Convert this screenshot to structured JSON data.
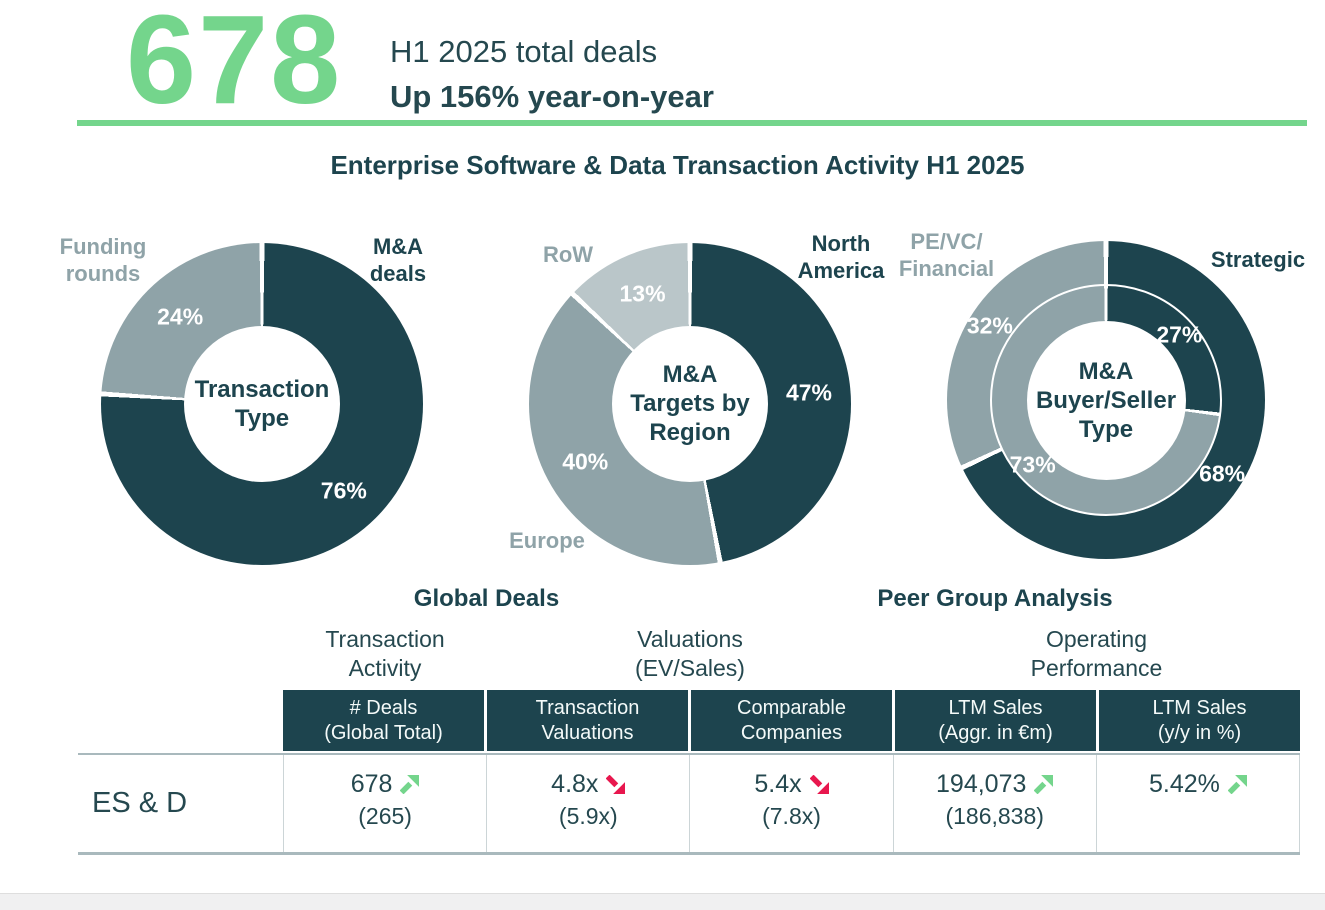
{
  "header": {
    "big_number": "678",
    "line1": "H1 2025 total deals",
    "line2": "Up 156% year-on-year"
  },
  "title": "Enterprise Software & Data Transaction Activity H1 2025",
  "colors": {
    "accent_green": "#74d58c",
    "negative_red": "#e8174e",
    "dark_teal": "#1d444e",
    "medium_gray": "#8fa3a8",
    "light_gray": "#bac6c9"
  },
  "chart_data": [
    {
      "type": "pie",
      "subtype": "donut",
      "title": "Transaction Type",
      "center_label": "Transaction\nType",
      "rings": [
        {
          "name": "transaction-type",
          "slices": [
            {
              "name": "M&A deals",
              "pct": 76,
              "color": "#1d444e",
              "label_color": "#ffffff"
            },
            {
              "name": "Funding rounds",
              "pct": 24,
              "color": "#8fa3a8",
              "label_color": "#ffffff"
            }
          ]
        }
      ],
      "ext_labels": [
        {
          "text": "Funding\nrounds",
          "tone": "gray"
        },
        {
          "text": "M&A\ndeals",
          "tone": "dark"
        }
      ]
    },
    {
      "type": "pie",
      "subtype": "donut",
      "title": "M&A Targets by Region",
      "center_label": "M&A\nTargets by\nRegion",
      "rings": [
        {
          "name": "targets-by-region",
          "slices": [
            {
              "name": "North America",
              "pct": 47,
              "color": "#1d444e",
              "label_color": "#ffffff"
            },
            {
              "name": "Europe",
              "pct": 40,
              "color": "#8fa3a8",
              "label_color": "#ffffff"
            },
            {
              "name": "RoW",
              "pct": 13,
              "color": "#bac6c9",
              "label_color": "#ffffff"
            }
          ]
        }
      ],
      "ext_labels": [
        {
          "text": "RoW",
          "tone": "gray"
        },
        {
          "text": "North\nAmerica",
          "tone": "dark"
        },
        {
          "text": "Europe",
          "tone": "gray"
        }
      ]
    },
    {
      "type": "pie",
      "subtype": "double-donut",
      "title": "M&A Buyer/Seller Type",
      "center_label": "M&A\nBuyer/Seller\nType",
      "rings": [
        {
          "name": "outer-ring",
          "slices": [
            {
              "name": "Strategic",
              "pct": 68,
              "color": "#1d444e",
              "label_color": "#ffffff"
            },
            {
              "name": "PE/VC/Financial",
              "pct": 32,
              "color": "#8fa3a8",
              "label_color": "#ffffff"
            }
          ]
        },
        {
          "name": "inner-ring",
          "slices": [
            {
              "name": "Strategic",
              "pct": 27,
              "color": "#1d444e",
              "label_color": "#ffffff"
            },
            {
              "name": "PE/VC/Financial",
              "pct": 73,
              "color": "#8fa3a8",
              "label_color": "#ffffff"
            }
          ]
        }
      ],
      "ext_labels": [
        {
          "text": "PE/VC/\nFinancial",
          "tone": "gray"
        },
        {
          "text": "Strategic",
          "tone": "dark"
        }
      ]
    }
  ],
  "sections": {
    "global_deals": "Global Deals",
    "peer_group": "Peer Group Analysis"
  },
  "table": {
    "sub_headers": [
      "Transaction\nActivity",
      "Valuations\n(EV/Sales)",
      "Operating\nPerformance"
    ],
    "columns": [
      "# Deals\n(Global Total)",
      "Transaction\nValuations",
      "Comparable\nCompanies",
      "LTM Sales\n(Aggr. in €m)",
      "LTM Sales\n(y/y in %)"
    ],
    "row": {
      "label": "ES & D",
      "cells": [
        {
          "value": "678",
          "trend": "up",
          "prior": "(265)"
        },
        {
          "value": "4.8x",
          "trend": "down",
          "prior": "(5.9x)"
        },
        {
          "value": "5.4x",
          "trend": "down",
          "prior": "(7.8x)"
        },
        {
          "value": "194,073",
          "trend": "up",
          "prior": "(186,838)"
        },
        {
          "value": "5.42%",
          "trend": "up",
          "prior": ""
        }
      ]
    }
  }
}
